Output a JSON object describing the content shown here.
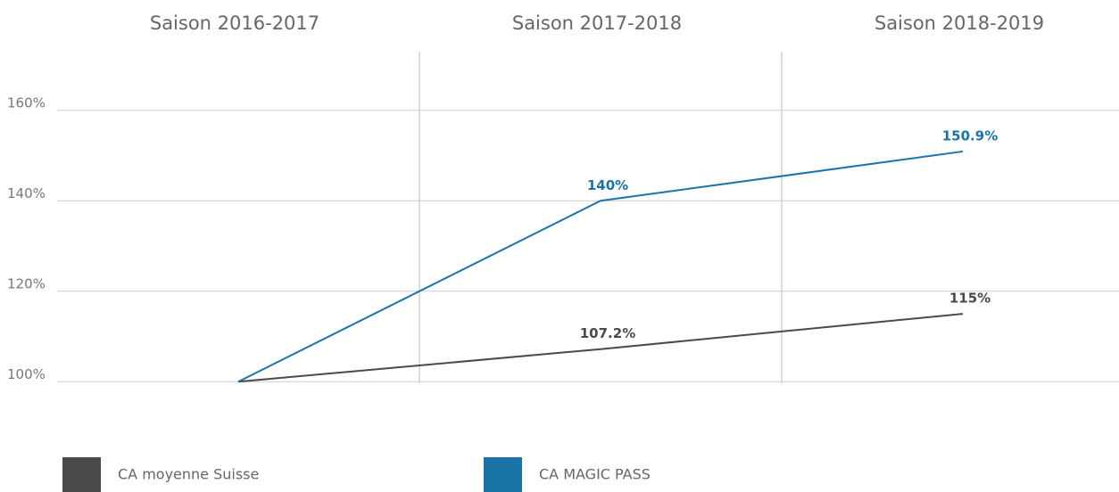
{
  "chart_data": {
    "type": "line",
    "categories": [
      "Saison 2016-2017",
      "Saison 2017-2018",
      "Saison 2018-2019"
    ],
    "series": [
      {
        "name": "CA moyenne Suisse",
        "color": "#4a4a4d",
        "values": [
          100,
          107.2,
          115
        ],
        "value_labels": [
          null,
          "107.2%",
          "115%"
        ]
      },
      {
        "name": "CA MAGIC PASS",
        "color": "#1a74a8",
        "values": [
          100,
          140,
          150.9
        ],
        "value_labels": [
          null,
          "140%",
          "150.9%"
        ]
      }
    ],
    "ylim": [
      90,
      170
    ],
    "yticks": [
      {
        "value": 100,
        "label": "100%"
      },
      {
        "value": 120,
        "label": "120%"
      },
      {
        "value": 140,
        "label": "140%"
      },
      {
        "value": 160,
        "label": "160%"
      }
    ],
    "grid": true
  }
}
